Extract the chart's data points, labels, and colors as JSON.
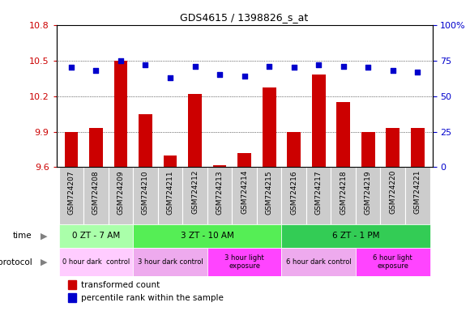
{
  "title": "GDS4615 / 1398826_s_at",
  "samples": [
    "GSM724207",
    "GSM724208",
    "GSM724209",
    "GSM724210",
    "GSM724211",
    "GSM724212",
    "GSM724213",
    "GSM724214",
    "GSM724215",
    "GSM724216",
    "GSM724217",
    "GSM724218",
    "GSM724219",
    "GSM724220",
    "GSM724221"
  ],
  "transformed_count": [
    9.9,
    9.93,
    10.5,
    10.05,
    9.7,
    10.22,
    9.62,
    9.72,
    10.27,
    9.9,
    10.38,
    10.15,
    9.9,
    9.93,
    9.93
  ],
  "percentile_rank": [
    70,
    68,
    75,
    72,
    63,
    71,
    65,
    64,
    71,
    70,
    72,
    71,
    70,
    68,
    67
  ],
  "ylim_left": [
    9.6,
    10.8
  ],
  "ylim_right": [
    0,
    100
  ],
  "yticks_left": [
    9.6,
    9.9,
    10.2,
    10.5,
    10.8
  ],
  "yticks_right": [
    0,
    25,
    50,
    75,
    100
  ],
  "bar_color": "#cc0000",
  "dot_color": "#0000cc",
  "sample_bg": "#cccccc",
  "time_groups": [
    {
      "label": "0 ZT - 7 AM",
      "start": 0,
      "end": 2,
      "color": "#aaffaa"
    },
    {
      "label": "3 ZT - 10 AM",
      "start": 3,
      "end": 8,
      "color": "#55ee55"
    },
    {
      "label": "6 ZT - 1 PM",
      "start": 9,
      "end": 14,
      "color": "#33cc55"
    }
  ],
  "protocol_groups": [
    {
      "label": "0 hour dark  control",
      "start": 0,
      "end": 2,
      "color": "#ffccff"
    },
    {
      "label": "3 hour dark control",
      "start": 3,
      "end": 5,
      "color": "#eeaaee"
    },
    {
      "label": "3 hour light\nexposure",
      "start": 6,
      "end": 8,
      "color": "#ff44ff"
    },
    {
      "label": "6 hour dark control",
      "start": 9,
      "end": 11,
      "color": "#eeaaee"
    },
    {
      "label": "6 hour light\nexposure",
      "start": 12,
      "end": 14,
      "color": "#ff44ff"
    }
  ],
  "legend_items": [
    {
      "label": "transformed count",
      "color": "#cc0000",
      "marker": "s"
    },
    {
      "label": "percentile rank within the sample",
      "color": "#0000cc",
      "marker": "s"
    }
  ]
}
